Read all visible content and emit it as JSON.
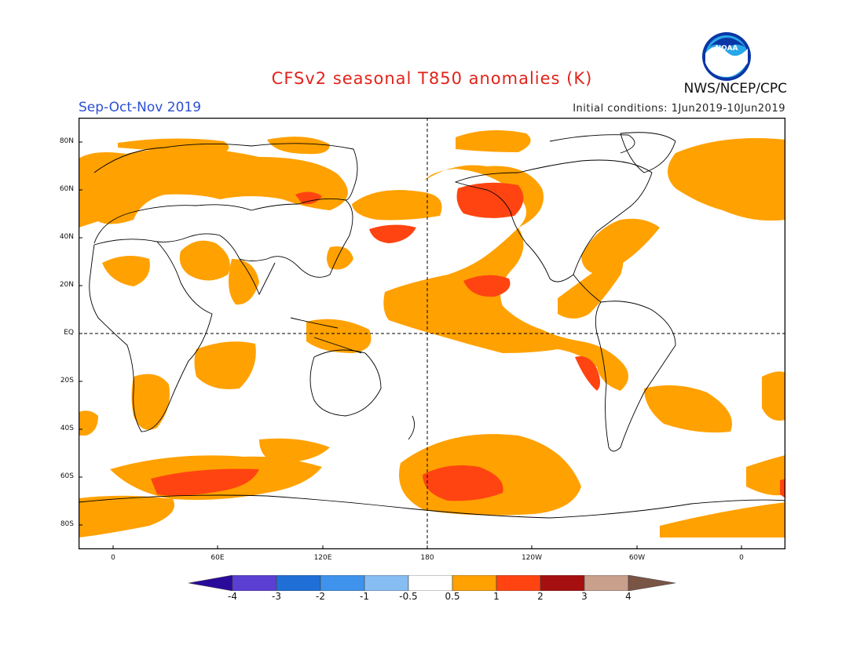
{
  "header": {
    "title": "CFSv2 seasonal T850 anomalies (K)",
    "period": "Sep-Oct-Nov 2019",
    "initial_conditions": "Initial conditions: 1Jun2019-10Jun2019",
    "agency": "NWS/NCEP/CPC",
    "logo_text": "NOAA"
  },
  "axes": {
    "lat_labels": [
      "80N",
      "60N",
      "40N",
      "20N",
      "EQ",
      "20S",
      "40S",
      "60S",
      "80S"
    ],
    "lon_labels": [
      "0",
      "60E",
      "120E",
      "180",
      "120W",
      "60W",
      "0"
    ]
  },
  "colorbar": {
    "labels": [
      "-4",
      "-3",
      "-2",
      "-1",
      "-0.5",
      "0.5",
      "1",
      "2",
      "3",
      "4"
    ],
    "colors": [
      "#2a0a9a",
      "#5b3fd3",
      "#1f6fd6",
      "#3f93ec",
      "#86bdf3",
      "#ffffff",
      "#ffa100",
      "#ff4411",
      "#a50f0f",
      "#c9a08c",
      "#7a5546"
    ]
  },
  "map_colors": {
    "anomaly_0_5_to_1": "#ffa100",
    "anomaly_1_to_2": "#ff4411",
    "coastline": "#000000"
  }
}
